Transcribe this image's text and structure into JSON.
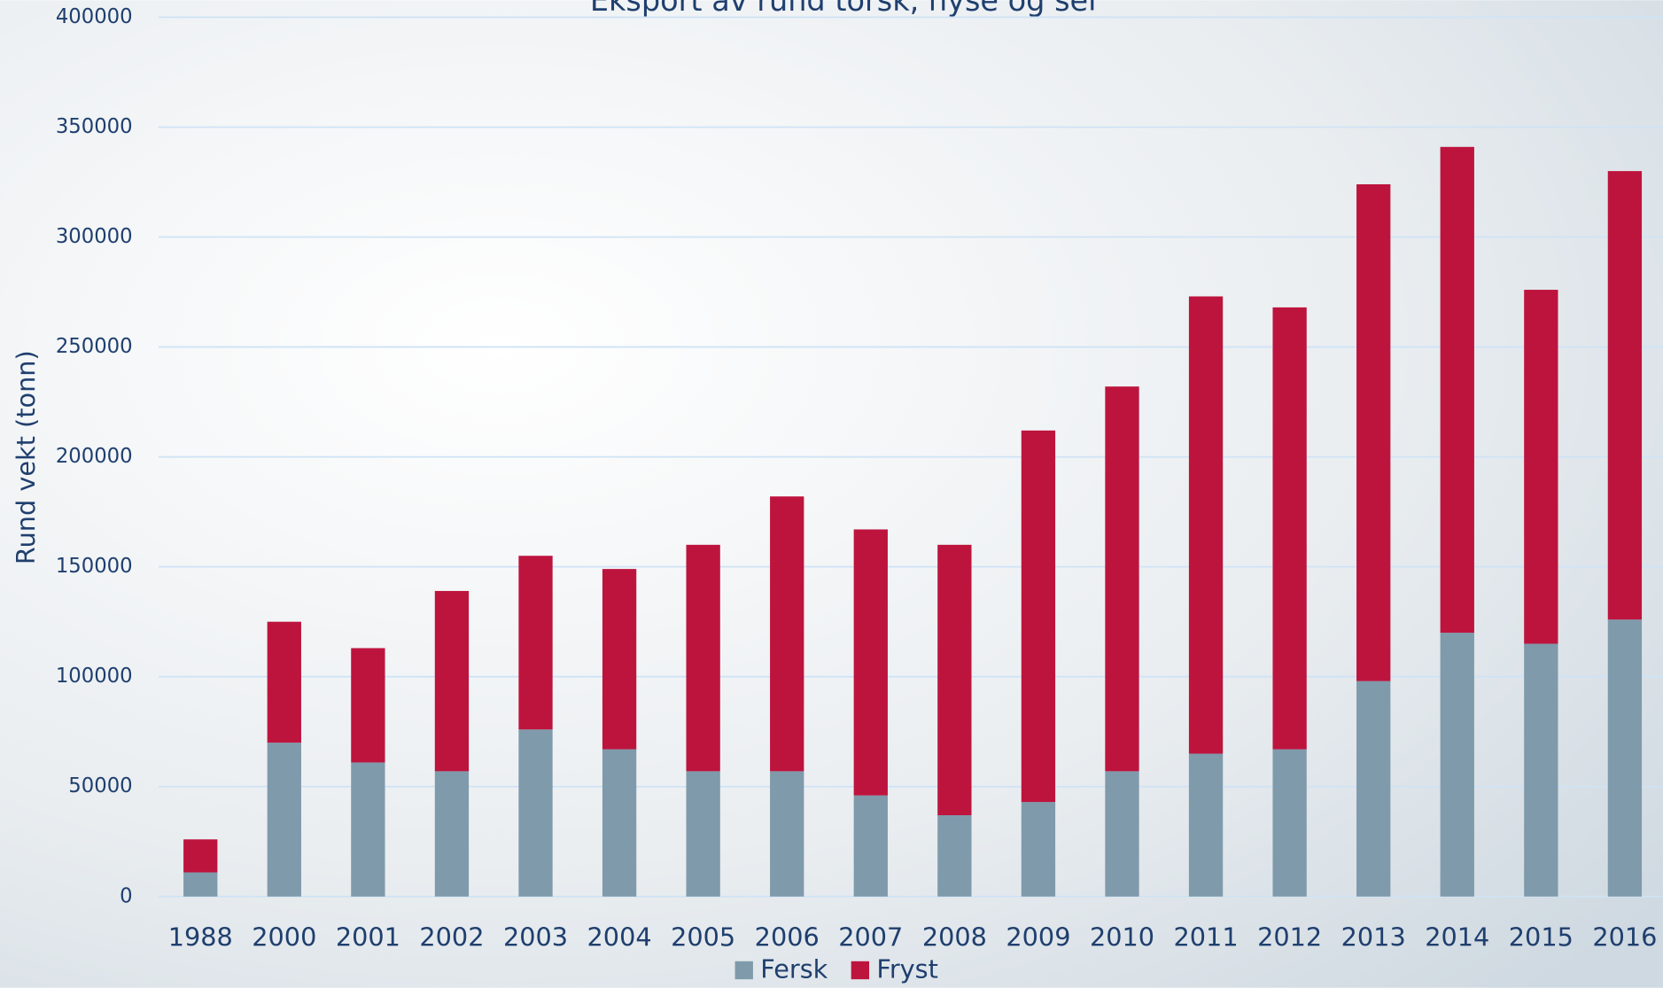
{
  "chart_data": {
    "type": "stacked_bar",
    "title": "Eksport av rund torsk, hyse og sei",
    "y_label": "Rund vekt (tonn)",
    "categories": [
      "1988",
      "2000",
      "2001",
      "2002",
      "2003",
      "2004",
      "2005",
      "2006",
      "2007",
      "2008",
      "2009",
      "2010",
      "2011",
      "2012",
      "2013",
      "2014",
      "2015",
      "2016"
    ],
    "series": [
      {
        "name": "Fersk",
        "color": "#7f9aab",
        "values": [
          11000,
          70000,
          61000,
          57000,
          76000,
          67000,
          57000,
          57000,
          46000,
          37000,
          43000,
          57000,
          65000,
          67000,
          98000,
          120000,
          115000,
          126000
        ]
      },
      {
        "name": "Fryst",
        "color": "#bd143e",
        "values": [
          15000,
          55000,
          52000,
          82000,
          79000,
          82000,
          103000,
          125000,
          121000,
          123000,
          169000,
          175000,
          208000,
          201000,
          226000,
          221000,
          161000,
          204000
        ]
      }
    ],
    "ylim": [
      0,
      400000
    ],
    "yticks": [
      0,
      50000,
      100000,
      150000,
      200000,
      250000,
      300000,
      350000,
      400000
    ],
    "grid": true,
    "legend": "bottom"
  }
}
